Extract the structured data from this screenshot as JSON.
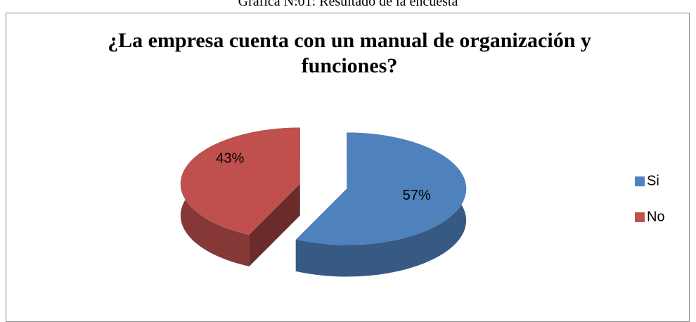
{
  "chart_data": {
    "type": "pie",
    "caption": "Gráfica N:01: Resultado de la encuesta",
    "title": "¿La empresa cuenta con un manual de organización y funciones?",
    "categories": [
      "Si",
      "No"
    ],
    "values": [
      57,
      43
    ],
    "value_labels": [
      "57%",
      "43%"
    ],
    "colors": [
      "#4f81bd",
      "#c0504d"
    ],
    "legend": "right"
  }
}
